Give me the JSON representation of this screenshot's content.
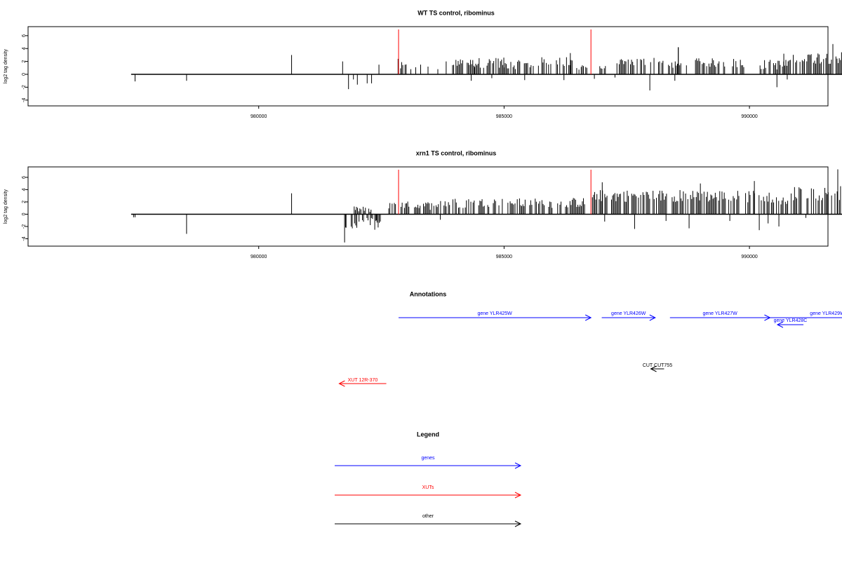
{
  "colors": {
    "background": "#ffffff",
    "frame": "#000000",
    "bars": "#000000",
    "marker": "#ff0000",
    "genes": "#0000ff",
    "xuts": "#ff0000",
    "other": "#000000"
  },
  "chart_data": [
    {
      "type": "bar",
      "title": "WT TS control, ribominus",
      "ylabel": "log2 tag density",
      "xlim": [
        975300,
        991600
      ],
      "ylim": [
        -4.9,
        7.4
      ],
      "x_ticks": [
        980000,
        985000,
        990000
      ],
      "x_tick_labels": [
        "980000",
        "985000",
        "990000"
      ],
      "y_ticks": [
        -4,
        -2,
        0,
        2,
        4,
        6
      ],
      "y_tick_labels": [
        "-4",
        "-2",
        "0",
        "2",
        "4",
        "6"
      ],
      "baseline_range": [
        977400,
        992400
      ],
      "marker_lines_x": [
        982850,
        986770
      ],
      "bars_sparse": [
        [
          977480,
          -1.1
        ],
        [
          978530,
          -1.0
        ],
        [
          980670,
          3.0
        ],
        [
          981710,
          2.0
        ],
        [
          981830,
          -2.3
        ],
        [
          981930,
          -0.8
        ],
        [
          982010,
          -1.6
        ],
        [
          982210,
          -1.4
        ],
        [
          982300,
          -1.4
        ],
        [
          982450,
          1.5
        ],
        [
          982840,
          2.4
        ],
        [
          983100,
          0.8
        ],
        [
          983200,
          1.1
        ],
        [
          983300,
          1.5
        ],
        [
          983450,
          1.2
        ],
        [
          983650,
          0.8
        ],
        [
          983820,
          2.0
        ],
        [
          984330,
          -1.0
        ],
        [
          984750,
          -0.6
        ],
        [
          985420,
          -0.9
        ],
        [
          986220,
          -0.9
        ],
        [
          986840,
          -0.7
        ],
        [
          987260,
          -0.5
        ],
        [
          987970,
          -2.5
        ],
        [
          988480,
          -1.0
        ],
        [
          988550,
          4.2
        ],
        [
          990560,
          -2.0
        ],
        [
          990770,
          -0.8
        ]
      ],
      "bars_dense": [
        {
          "from": 982890,
          "to": 983050,
          "mean": 1.2,
          "spread": 0.7
        },
        {
          "from": 983950,
          "to": 984400,
          "mean": 1.8,
          "spread": 0.6
        },
        {
          "from": 984400,
          "to": 985000,
          "mean": 1.8,
          "spread": 0.8
        },
        {
          "from": 985000,
          "to": 985600,
          "mean": 1.5,
          "spread": 0.7
        },
        {
          "from": 985700,
          "to": 986400,
          "mean": 1.8,
          "spread": 0.9
        },
        {
          "from": 986480,
          "to": 986700,
          "mean": 1.2,
          "spread": 0.5
        },
        {
          "from": 986950,
          "to": 987100,
          "mean": 1.0,
          "spread": 0.3
        },
        {
          "from": 987300,
          "to": 988300,
          "mean": 1.9,
          "spread": 0.8
        },
        {
          "from": 988350,
          "to": 988800,
          "mean": 1.4,
          "spread": 0.7
        },
        {
          "from": 988900,
          "to": 989900,
          "mean": 1.8,
          "spread": 0.7
        },
        {
          "from": 990170,
          "to": 990850,
          "mean": 1.5,
          "spread": 0.8
        },
        {
          "from": 990870,
          "to": 992400,
          "mean": 2.6,
          "spread": 1.0
        }
      ],
      "peaks_dense": [
        [
          988550,
          4.2
        ],
        [
          991700,
          4.7
        ],
        [
          990700,
          3.2
        ],
        [
          986350,
          3.3
        ]
      ]
    },
    {
      "type": "bar",
      "title": "xrn1 TS control, ribominus",
      "ylabel": "log2 tag density",
      "xlim": [
        975300,
        991600
      ],
      "ylim": [
        -5.2,
        7.7
      ],
      "x_ticks": [
        980000,
        985000,
        990000
      ],
      "x_tick_labels": [
        "980000",
        "985000",
        "990000"
      ],
      "y_ticks": [
        -4,
        -2,
        0,
        2,
        4,
        6
      ],
      "y_tick_labels": [
        "-4",
        "-2",
        "0",
        "2",
        "4",
        "6"
      ],
      "baseline_range": [
        977400,
        992400
      ],
      "marker_lines_x": [
        982850,
        986770
      ],
      "bars_sparse": [
        [
          977450,
          -0.5
        ],
        [
          977480,
          -0.5
        ],
        [
          978530,
          -3.2
        ],
        [
          980670,
          3.4
        ],
        [
          981750,
          -4.6
        ],
        [
          981780,
          -2.2
        ],
        [
          982400,
          -1.0
        ],
        [
          983700,
          -0.9
        ],
        [
          987050,
          -1.2
        ],
        [
          987660,
          -2.4
        ],
        [
          988300,
          -1.1
        ],
        [
          988770,
          -2.3
        ],
        [
          989600,
          -1.1
        ],
        [
          990200,
          -2.6
        ],
        [
          990380,
          -1.5
        ],
        [
          990600,
          -2.0
        ],
        [
          991150,
          -0.6
        ]
      ],
      "bars_dense": [
        {
          "from": 981770,
          "to": 982500,
          "mean": -1.7,
          "spread": 1.1
        },
        {
          "from": 981900,
          "to": 982300,
          "mean": 0.8,
          "spread": 0.5
        },
        {
          "from": 982650,
          "to": 982850,
          "mean": 1.3,
          "spread": 0.6
        },
        {
          "from": 982900,
          "to": 983500,
          "mean": 1.4,
          "spread": 0.7
        },
        {
          "from": 983500,
          "to": 984300,
          "mean": 1.8,
          "spread": 0.8
        },
        {
          "from": 984300,
          "to": 985200,
          "mean": 1.9,
          "spread": 0.7
        },
        {
          "from": 985200,
          "to": 986000,
          "mean": 1.8,
          "spread": 0.8
        },
        {
          "from": 986000,
          "to": 986650,
          "mean": 1.9,
          "spread": 0.8
        },
        {
          "from": 986800,
          "to": 988800,
          "mean": 3.0,
          "spread": 1.0
        },
        {
          "from": 988800,
          "to": 990500,
          "mean": 2.9,
          "spread": 1.0
        },
        {
          "from": 990550,
          "to": 990800,
          "mean": 2.0,
          "spread": 0.8
        },
        {
          "from": 990850,
          "to": 992400,
          "mean": 3.4,
          "spread": 1.2
        }
      ],
      "peaks_dense": [
        [
          991800,
          7.3
        ],
        [
          987000,
          5.2
        ],
        [
          989000,
          5.0
        ],
        [
          990100,
          5.4
        ]
      ]
    }
  ],
  "annotations": {
    "title": "Annotations",
    "features": [
      {
        "label": "gene YLR425W",
        "type": "gene",
        "start": 982850,
        "end": 986770,
        "dir": "right",
        "row": 0
      },
      {
        "label": "gene YLR426W",
        "type": "gene",
        "start": 986990,
        "end": 988080,
        "dir": "right",
        "row": 0
      },
      {
        "label": "gene YLR427W",
        "type": "gene",
        "start": 988380,
        "end": 990420,
        "dir": "right",
        "row": 0
      },
      {
        "label": "gene YLR428C",
        "type": "gene",
        "start": 990570,
        "end": 991100,
        "dir": "left",
        "row": 1
      },
      {
        "label": "gene YLR429W",
        "type": "gene",
        "start": 990420,
        "end": 992750,
        "dir": "right",
        "row": 0
      },
      {
        "label": "CUT CUT755",
        "type": "other",
        "start": 987990,
        "end": 988260,
        "dir": "left",
        "row": 2
      },
      {
        "label": "XUT 12R-370",
        "type": "xut",
        "start": 981640,
        "end": 982600,
        "dir": "left",
        "row": 3
      }
    ]
  },
  "legend": {
    "title": "Legend",
    "items": [
      {
        "label": "genes",
        "type": "gene"
      },
      {
        "label": "XUTs",
        "type": "xut"
      },
      {
        "label": "other",
        "type": "other"
      }
    ]
  }
}
